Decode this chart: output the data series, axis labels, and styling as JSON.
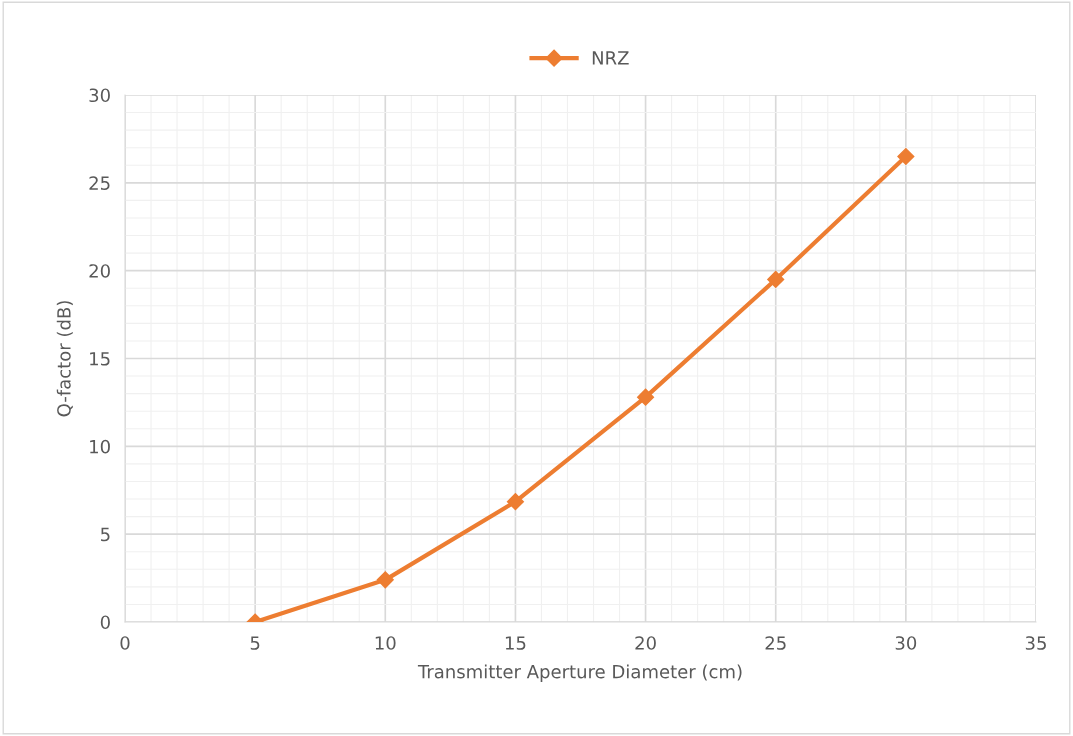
{
  "chart_data": {
    "type": "line",
    "xlabel": "Transmitter Aperture Diameter (cm)",
    "ylabel": "Q-factor (dB)",
    "x": [
      5,
      10,
      15,
      20,
      25,
      30
    ],
    "series": [
      {
        "name": "NRZ",
        "color": "#ed7d31",
        "values": [
          0,
          2.4,
          6.85,
          12.8,
          19.5,
          26.5
        ]
      }
    ],
    "xlim": [
      0,
      35
    ],
    "xticks": [
      0,
      5,
      10,
      15,
      20,
      25,
      30,
      35
    ],
    "ylim": [
      0,
      30
    ],
    "yticks": [
      0,
      5,
      10,
      15,
      20,
      25,
      30
    ],
    "grid": true,
    "legend": "top",
    "marker": "diamond",
    "line_style": "solid"
  }
}
